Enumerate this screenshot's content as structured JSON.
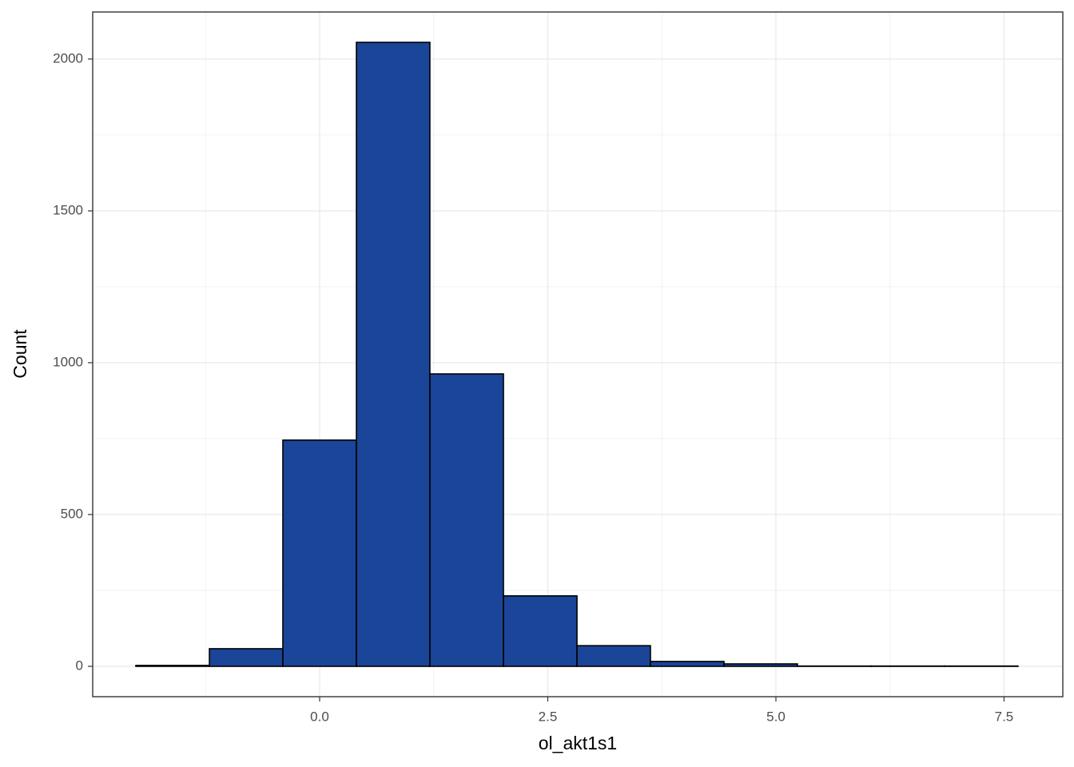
{
  "chart_data": {
    "type": "histogram",
    "x_label": "ol_akt1s1",
    "y_label": "Count",
    "bins": [
      -2.014,
      -1.208,
      -0.403,
      0.403,
      1.208,
      2.014,
      2.82,
      3.625,
      4.431,
      5.236,
      6.042,
      6.847,
      7.653
    ],
    "values": [
      3,
      58,
      745,
      2055,
      963,
      232,
      68,
      16,
      8,
      1,
      1,
      1
    ],
    "color": "#1a4599",
    "edge_color": "#000000",
    "xlim": [
      -2.487,
      8.144
    ],
    "ylim": [
      -100,
      2155
    ],
    "xticks": [
      {
        "value": 0,
        "label": "0.0"
      },
      {
        "value": 2.5,
        "label": "2.5"
      },
      {
        "value": 5,
        "label": "5.0"
      },
      {
        "value": 7.5,
        "label": "7.5"
      }
    ],
    "yticks": [
      0,
      500,
      1000,
      1500,
      2000
    ],
    "grid": true
  }
}
